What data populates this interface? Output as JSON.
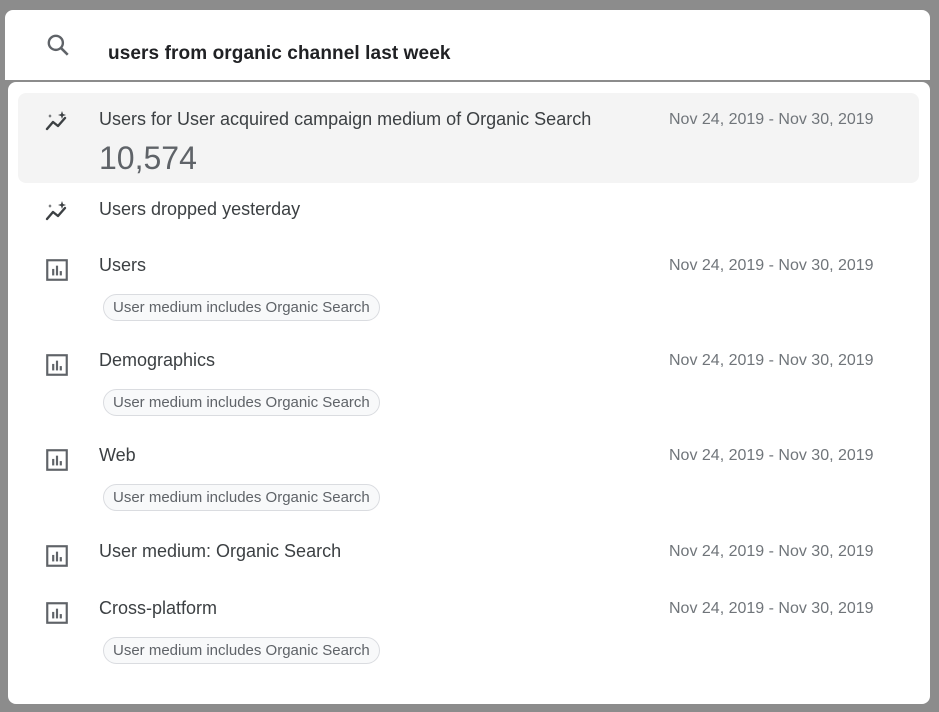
{
  "search": {
    "query": "users from organic channel last week",
    "icon": "search-icon"
  },
  "results": [
    {
      "type": "insight",
      "icon": "insights-icon",
      "title": "Users for User acquired campaign medium of Organic Search",
      "date": "Nov 24, 2019 - Nov 30, 2019",
      "value": "10,574",
      "highlighted": true
    },
    {
      "type": "insight",
      "icon": "insights-icon",
      "title": "Users dropped yesterday"
    },
    {
      "type": "report",
      "icon": "bar-chart-icon",
      "title": "Users",
      "date": "Nov 24, 2019 - Nov 30, 2019",
      "chip": "User medium includes Organic Search"
    },
    {
      "type": "report",
      "icon": "bar-chart-icon",
      "title": "Demographics",
      "date": "Nov 24, 2019 - Nov 30, 2019",
      "chip": "User medium includes Organic Search"
    },
    {
      "type": "report",
      "icon": "bar-chart-icon",
      "title": "Web",
      "date": "Nov 24, 2019 - Nov 30, 2019",
      "chip": "User medium includes Organic Search"
    },
    {
      "type": "report",
      "icon": "bar-chart-icon",
      "title": "User medium: Organic Search",
      "date": "Nov 24, 2019 - Nov 30, 2019"
    },
    {
      "type": "report",
      "icon": "bar-chart-icon",
      "title": "Cross-platform",
      "date": "Nov 24, 2019 - Nov 30, 2019",
      "chip": "User medium includes Organic Search"
    }
  ]
}
